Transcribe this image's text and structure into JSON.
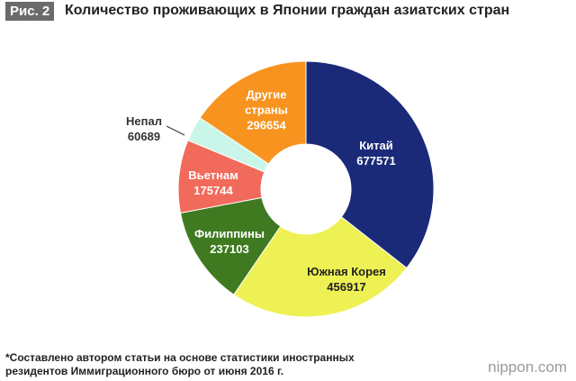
{
  "badge": "Рис. 2",
  "chart_data": {
    "type": "donut",
    "title": "Количество проживающих в Японии граждан азиатских стран",
    "categories": [
      "Китай",
      "Южная Корея",
      "Филиппины",
      "Вьетнам",
      "Непал",
      "Другие страны"
    ],
    "values": [
      677571,
      456917,
      237103,
      175744,
      60689,
      296654
    ],
    "colors": [
      "#1b2a78",
      "#eef153",
      "#3f7a20",
      "#f26a5b",
      "#c9f6e8",
      "#f7931e"
    ]
  },
  "footnote": "*Составлено автором статьи на основе статистики иностранных резидентов Иммиграционного бюро от июня 2016 г.",
  "logo": "nippon.com"
}
